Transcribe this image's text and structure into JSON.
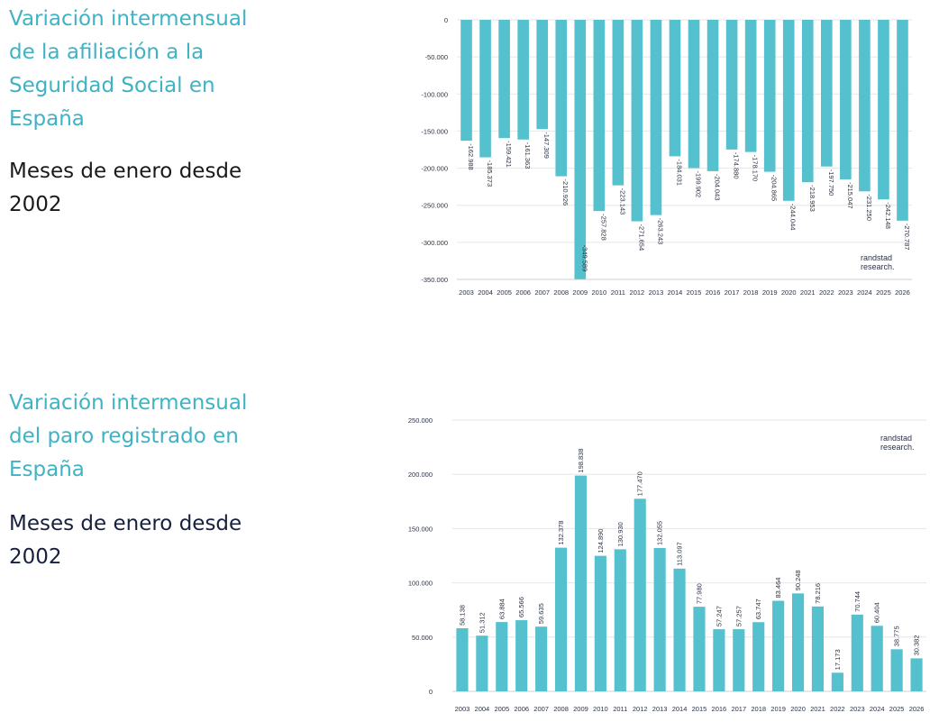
{
  "blocks": [
    {
      "title": "Variación intermensual de la afiliación a la Seguridad Social en España",
      "subtitle": "Meses de enero desde 2002"
    },
    {
      "title": "Variación intermensual del paro registrado en España",
      "subtitle": "Meses de enero desde 2002"
    }
  ],
  "colors": {
    "title": "#3fb2c3",
    "bar": "#56c1ce",
    "grid": "#e6e6e6",
    "text": "#2c3345"
  },
  "chart_data": [
    {
      "type": "bar",
      "title": "Variación intermensual de la afiliación a la Seguridad Social en España",
      "xlabel": "",
      "ylabel": "",
      "ylim": [
        -350000,
        0
      ],
      "yticks": [
        0,
        -50000,
        -100000,
        -150000,
        -200000,
        -250000,
        -300000,
        -350000
      ],
      "ytick_labels": [
        "0",
        "-50.000",
        "-100.000",
        "-150.000",
        "-200.000",
        "-250.000",
        "-300.000",
        "-350.000"
      ],
      "grid": true,
      "brand": [
        "randstad",
        "research."
      ],
      "brand_position": "bottom-right",
      "categories": [
        "2003",
        "2004",
        "2005",
        "2006",
        "2007",
        "2008",
        "2009",
        "2010",
        "2011",
        "2012",
        "2013",
        "2014",
        "2015",
        "2016",
        "2017",
        "2018",
        "2019",
        "2020",
        "2021",
        "2022",
        "2023",
        "2024",
        "2025",
        "2026"
      ],
      "values": [
        -162988,
        -185373,
        -159421,
        -161363,
        -147309,
        -210926,
        -349589,
        -257828,
        -223143,
        -271654,
        -263243,
        -184031,
        -199902,
        -204043,
        -174880,
        -178170,
        -204865,
        -244044,
        -218953,
        -197750,
        -215047,
        -231250,
        -242148,
        -270787
      ],
      "value_labels": [
        "-162.988",
        "-185.373",
        "-159.421",
        "-161.363",
        "-147.309",
        "-210.926",
        "-349.589",
        "-257.828",
        "-223.143",
        "-271.654",
        "-263.243",
        "-184.031",
        "-199.902",
        "-204.043",
        "-174.880",
        "-178.170",
        "-204.865",
        "-244.044",
        "-218.953",
        "-197.750",
        "-215.047",
        "-231.250",
        "-242.148",
        "-270.787"
      ]
    },
    {
      "type": "bar",
      "title": "Variación intermensual del paro registrado en España",
      "xlabel": "",
      "ylabel": "",
      "ylim": [
        0,
        250000
      ],
      "yticks": [
        0,
        50000,
        100000,
        150000,
        200000,
        250000
      ],
      "ytick_labels": [
        "0",
        "50.000",
        "100.000",
        "150.000",
        "200.000",
        "250.000"
      ],
      "grid": true,
      "brand": [
        "randstad",
        "research."
      ],
      "brand_position": "top-right",
      "categories": [
        "2003",
        "2004",
        "2005",
        "2006",
        "2007",
        "2008",
        "2009",
        "2010",
        "2011",
        "2012",
        "2013",
        "2014",
        "2015",
        "2016",
        "2017",
        "2018",
        "2019",
        "2020",
        "2021",
        "2022",
        "2023",
        "2024",
        "2025",
        "2026"
      ],
      "values": [
        58138,
        51312,
        63884,
        65566,
        59635,
        132378,
        198838,
        124890,
        130930,
        177470,
        132055,
        113097,
        77980,
        57247,
        57257,
        63747,
        83464,
        90248,
        78216,
        17173,
        70744,
        60404,
        38775,
        30382
      ],
      "value_labels": [
        "58.138",
        "51.312",
        "63.884",
        "65.566",
        "59.635",
        "132.378",
        "198.838",
        "124.890",
        "130.930",
        "177.470",
        "132.055",
        "113.097",
        "77.980",
        "57.247",
        "57.257",
        "63.747",
        "83.464",
        "90.248",
        "78.216",
        "17.173",
        "70.744",
        "60.404",
        "38.775",
        "30.382"
      ]
    }
  ]
}
